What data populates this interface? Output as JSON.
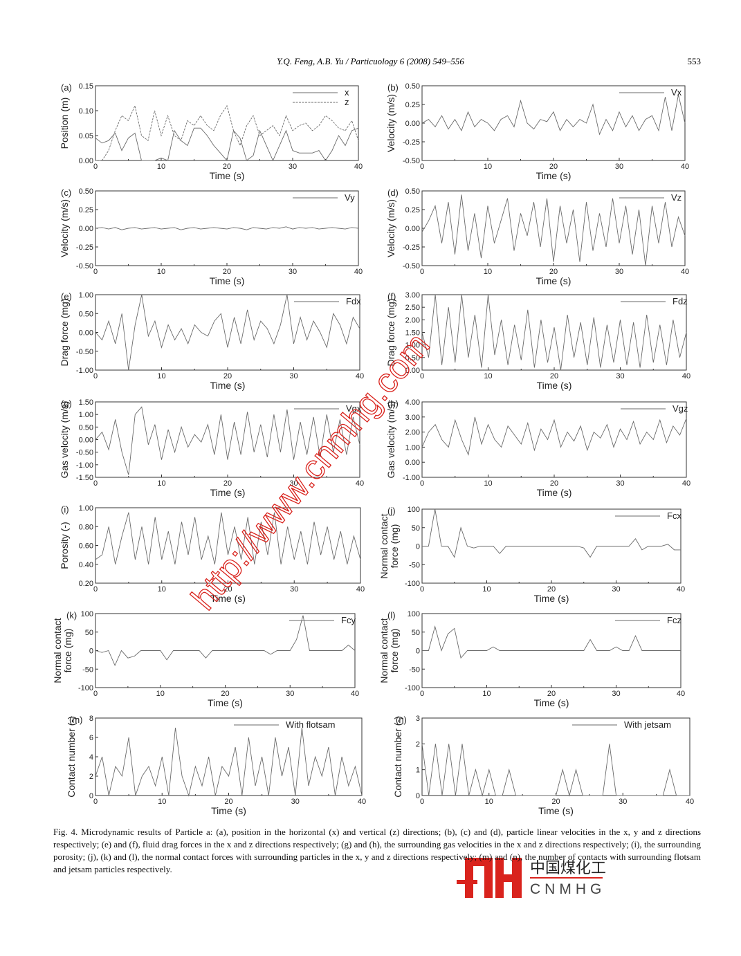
{
  "header": {
    "running_head": "Y.Q. Feng, A.B. Yu / Particuology 6 (2008) 549–556",
    "page_number": "553"
  },
  "caption": "Fig. 4. Microdynamic results of Particle a: (a), position in the horizontal (x) and vertical (z) directions; (b), (c) and (d), particle linear velocities in the x, y and z directions respectively; (e) and (f), fluid drag forces in the x and z directions respectively; (g) and (h), the surrounding gas velocities in the x and z directions respectively; (i), the surrounding porosity; (j), (k) and (l), the normal contact forces with surrounding particles in the x, y and z directions respectively; (m) and (n), the number of contacts with surrounding flotsam and jetsam particles respectively.",
  "watermark": {
    "url_text": "http://www.cnmhg.com",
    "logo_cn": "中国煤化工",
    "logo_en": "CNMHG",
    "color": "#d9231d"
  },
  "colors": {
    "line": "#6a6a6a",
    "axis": "#333333"
  },
  "chart_data": [
    {
      "id": "a",
      "panel": "(a)",
      "type": "line",
      "xlabel": "Time (s)",
      "ylabel": [
        "Position (m)"
      ],
      "xlim": [
        0,
        40
      ],
      "ylim": [
        0,
        0.15
      ],
      "xticks": [
        "0",
        "10",
        "20",
        "30",
        "40"
      ],
      "yticks": [
        "0.00",
        "0.05",
        "0.10",
        "0.15"
      ],
      "x_step": 1,
      "series": [
        {
          "name": "x",
          "style": "solid",
          "values": [
            0.045,
            0.035,
            0.04,
            0.055,
            0.02,
            0.045,
            0.055,
            0.0,
            0.0,
            0.0,
            0.005,
            0.0,
            0.06,
            0.04,
            0.03,
            0.065,
            0.065,
            0.05,
            0.03,
            0.015,
            0.0,
            0.06,
            0.045,
            0.0,
            0.01,
            0.06,
            0.03,
            0.0,
            0.03,
            0.06,
            0.02,
            0.015,
            0.015,
            0.015,
            0.02,
            0.0,
            0.02,
            0.05,
            0.03,
            0.06,
            0.065
          ]
        },
        {
          "name": "z",
          "style": "dashed",
          "values": [
            0.0,
            0.0,
            0.02,
            0.06,
            0.09,
            0.08,
            0.11,
            0.05,
            0.04,
            0.1,
            0.05,
            0.09,
            0.05,
            0.04,
            0.08,
            0.07,
            0.09,
            0.07,
            0.06,
            0.09,
            0.11,
            0.06,
            0.03,
            0.07,
            0.09,
            0.05,
            0.06,
            0.07,
            0.05,
            0.09,
            0.06,
            0.07,
            0.075,
            0.06,
            0.07,
            0.09,
            0.08,
            0.065,
            0.06,
            0.08,
            0.04
          ]
        }
      ]
    },
    {
      "id": "b",
      "panel": "(b)",
      "type": "line",
      "xlabel": "Time (s)",
      "ylabel": [
        "Velocity (m/s)"
      ],
      "xlim": [
        0,
        40
      ],
      "ylim": [
        -0.5,
        0.5
      ],
      "xticks": [
        "0",
        "10",
        "20",
        "30",
        "40"
      ],
      "yticks": [
        "-0.50",
        "-0.25",
        "0.00",
        "0.25",
        "0.50"
      ],
      "x_step": 1,
      "series": [
        {
          "name": "Vx",
          "style": "solid",
          "values": [
            0,
            0.05,
            -0.05,
            0.1,
            -0.08,
            0.05,
            -0.1,
            0.15,
            -0.05,
            0.05,
            0,
            -0.1,
            0.05,
            0.1,
            -0.05,
            0.3,
            0,
            -0.08,
            0.05,
            0.02,
            0.15,
            -0.1,
            0.05,
            -0.05,
            0.05,
            0,
            0.25,
            -0.15,
            0.05,
            -0.1,
            0.15,
            -0.05,
            0.1,
            -0.1,
            0.05,
            0.1,
            -0.1,
            0.35,
            -0.1,
            0.38,
            0
          ]
        }
      ]
    },
    {
      "id": "c",
      "panel": "(c)",
      "type": "line",
      "xlabel": "Time (s)",
      "ylabel": [
        "Velocity (m/s)"
      ],
      "xlim": [
        0,
        40
      ],
      "ylim": [
        -0.5,
        0.5
      ],
      "xticks": [
        "0",
        "10",
        "20",
        "30",
        "40"
      ],
      "yticks": [
        "-0.50",
        "-0.25",
        "0.00",
        "0.25",
        "0.50"
      ],
      "x_step": 1,
      "series": [
        {
          "name": "Vy",
          "style": "solid",
          "values": [
            0,
            0.01,
            -0.01,
            0.01,
            -0.02,
            0,
            0.01,
            -0.01,
            0,
            0.01,
            -0.01,
            0,
            0.01,
            -0.02,
            0,
            0.01,
            -0.01,
            0,
            0.01,
            0,
            -0.01,
            0.01,
            0,
            -0.02,
            0.01,
            0,
            -0.01,
            0.01,
            0,
            0.02,
            -0.01,
            0.01,
            0,
            0.01,
            -0.01,
            0,
            0.01,
            0,
            -0.01,
            0.01,
            0
          ]
        }
      ]
    },
    {
      "id": "d",
      "panel": "(d)",
      "type": "line",
      "xlabel": "Time (s)",
      "ylabel": [
        "Velocity (m/s)"
      ],
      "xlim": [
        0,
        40
      ],
      "ylim": [
        -0.5,
        0.5
      ],
      "xticks": [
        "0",
        "10",
        "20",
        "30",
        "40"
      ],
      "yticks": [
        "-0.50",
        "-0.25",
        "0.00",
        "0.25",
        "0.50"
      ],
      "x_step": 1,
      "series": [
        {
          "name": "Vz",
          "style": "solid",
          "values": [
            -0.05,
            0.1,
            0.3,
            -0.2,
            0.35,
            -0.35,
            0.45,
            -0.3,
            0.2,
            -0.4,
            0.3,
            -0.2,
            0.1,
            0.4,
            -0.3,
            0.2,
            -0.1,
            0.35,
            -0.25,
            0.4,
            -0.45,
            0.3,
            -0.2,
            0.25,
            -0.45,
            0.35,
            -0.3,
            0.2,
            -0.25,
            0.4,
            -0.2,
            0.3,
            -0.35,
            0.25,
            -0.5,
            0.3,
            -0.2,
            0.35,
            -0.25,
            0.15,
            -0.1
          ]
        }
      ]
    },
    {
      "id": "e",
      "panel": "(e)",
      "type": "line",
      "xlabel": "Time (s)",
      "ylabel": [
        "Drag force (mg)"
      ],
      "xlim": [
        0,
        40
      ],
      "ylim": [
        -1,
        1
      ],
      "xticks": [
        "0",
        "10",
        "20",
        "30",
        "40"
      ],
      "yticks": [
        "-1.00",
        "-0.50",
        "0.00",
        "0.50",
        "1.00"
      ],
      "x_step": 1,
      "series": [
        {
          "name": "Fdx",
          "style": "solid",
          "values": [
            0,
            -0.2,
            0.3,
            -0.3,
            0.5,
            -1.0,
            0.2,
            1.0,
            -0.1,
            0.3,
            -0.4,
            0.2,
            -0.2,
            0.1,
            -0.3,
            0.2,
            0.0,
            -0.1,
            0.3,
            0.5,
            -0.4,
            0.4,
            -0.3,
            0.6,
            -0.2,
            0.3,
            0.1,
            -0.3,
            0.2,
            1.0,
            -0.3,
            0.4,
            -0.2,
            0.3,
            0.0,
            -0.4,
            0.5,
            0.2,
            -0.3,
            0.4,
            0.1
          ]
        }
      ]
    },
    {
      "id": "f",
      "panel": "(f)",
      "type": "line",
      "xlabel": "Time (s)",
      "ylabel": [
        "Drag force (mg)"
      ],
      "xlim": [
        0,
        40
      ],
      "ylim": [
        0,
        3
      ],
      "xticks": [
        "0",
        "10",
        "20",
        "30",
        "40"
      ],
      "yticks": [
        "0.00",
        "0.50",
        "1.00",
        "1.50",
        "2.00",
        "2.50",
        "3.00"
      ],
      "x_step": 1,
      "series": [
        {
          "name": "Fdz",
          "style": "solid",
          "values": [
            1.5,
            0.5,
            3.0,
            0.2,
            2.5,
            0.3,
            3.0,
            0.5,
            2.2,
            0.1,
            3.0,
            0.6,
            2.0,
            0.2,
            1.8,
            0.4,
            2.4,
            0.1,
            2.0,
            0.3,
            1.7,
            0.0,
            2.2,
            0.5,
            1.9,
            0.2,
            2.1,
            0.1,
            1.8,
            0.3,
            2.0,
            0.2,
            1.9,
            0.1,
            2.2,
            0.3,
            1.8,
            0.2,
            2.0,
            0.5,
            1.5
          ]
        }
      ]
    },
    {
      "id": "g",
      "panel": "(g)",
      "type": "line",
      "xlabel": "Time (s)",
      "ylabel": [
        "Gas velocity (m/s)"
      ],
      "xlim": [
        0,
        40
      ],
      "ylim": [
        -1.5,
        1.5
      ],
      "xticks": [
        "0",
        "10",
        "20",
        "30",
        "40"
      ],
      "yticks": [
        "-1.50",
        "-1.00",
        "-0.50",
        "0.00",
        "0.50",
        "1.00",
        "1.50"
      ],
      "x_step": 1,
      "series": [
        {
          "name": "Vgx",
          "style": "solid",
          "values": [
            0,
            0.3,
            -0.4,
            0.8,
            -0.5,
            -1.4,
            1.0,
            1.3,
            -0.2,
            0.6,
            -0.8,
            0.4,
            -0.5,
            0.5,
            -0.3,
            0.2,
            -0.1,
            0.6,
            -0.6,
            1.0,
            -0.8,
            0.7,
            -0.6,
            1.1,
            -0.5,
            0.6,
            -0.7,
            1.0,
            -0.5,
            1.2,
            -0.8,
            0.7,
            -0.6,
            0.9,
            -0.7,
            1.0,
            -0.5,
            0.8,
            -0.6,
            0.9,
            -0.2
          ]
        }
      ]
    },
    {
      "id": "h",
      "panel": "(h)",
      "type": "line",
      "xlabel": "Time (s)",
      "ylabel": [
        "Gas velocity (m/s)"
      ],
      "xlim": [
        0,
        40
      ],
      "ylim": [
        -1,
        4
      ],
      "xticks": [
        "0",
        "10",
        "20",
        "30",
        "40"
      ],
      "yticks": [
        "-1.00",
        "0.00",
        "1.00",
        "2.00",
        "3.00",
        "4.00"
      ],
      "x_step": 1,
      "series": [
        {
          "name": "Vgz",
          "style": "solid",
          "values": [
            1.0,
            2.0,
            2.5,
            1.5,
            1.0,
            2.8,
            1.5,
            0.5,
            3.0,
            1.2,
            2.5,
            1.5,
            1.0,
            2.4,
            1.8,
            1.2,
            2.6,
            0.8,
            2.2,
            1.5,
            2.8,
            1.0,
            2.0,
            1.4,
            2.4,
            0.8,
            2.0,
            1.6,
            2.5,
            1.0,
            2.2,
            1.5,
            2.7,
            1.2,
            2.0,
            1.5,
            2.8,
            1.3,
            2.4,
            1.8,
            2.9
          ]
        }
      ]
    },
    {
      "id": "i",
      "panel": "(i)",
      "type": "line",
      "xlabel": "Time (s)",
      "ylabel": [
        "Porosity (-)"
      ],
      "xlim": [
        0,
        40
      ],
      "ylim": [
        0.2,
        1.0
      ],
      "xticks": [
        "0",
        "10",
        "20",
        "30",
        "40"
      ],
      "yticks": [
        "0.20",
        "0.40",
        "0.60",
        "0.80",
        "1.00"
      ],
      "x_step": 1,
      "series": [
        {
          "name": "",
          "style": "solid",
          "values": [
            0.45,
            0.5,
            0.8,
            0.4,
            0.7,
            0.95,
            0.45,
            0.8,
            0.4,
            0.9,
            0.45,
            0.75,
            0.4,
            0.85,
            0.5,
            0.9,
            0.45,
            0.7,
            0.4,
            0.95,
            0.5,
            0.8,
            0.45,
            0.9,
            0.4,
            0.85,
            0.5,
            0.95,
            0.4,
            0.8,
            0.45,
            0.75,
            0.4,
            0.85,
            0.5,
            0.8,
            0.45,
            0.75,
            0.4,
            0.7,
            0.45
          ]
        }
      ]
    },
    {
      "id": "j",
      "panel": "(j)",
      "type": "line",
      "xlabel": "Time (s)",
      "ylabel": [
        "Normal contact",
        "force (mg)"
      ],
      "xlim": [
        0,
        40
      ],
      "ylim": [
        -100,
        100
      ],
      "xticks": [
        "0",
        "10",
        "20",
        "30",
        "40"
      ],
      "yticks": [
        "-100",
        "-50",
        "0",
        "50",
        "100"
      ],
      "x_step": 1,
      "series": [
        {
          "name": "Fcx",
          "style": "solid",
          "values": [
            0,
            0,
            100,
            0,
            0,
            -30,
            50,
            0,
            -5,
            0,
            0,
            0,
            -20,
            0,
            0,
            0,
            0,
            0,
            0,
            0,
            0,
            0,
            0,
            0,
            0,
            -5,
            -30,
            0,
            0,
            0,
            0,
            0,
            0,
            20,
            -10,
            0,
            0,
            0,
            5,
            -10,
            -10
          ]
        }
      ]
    },
    {
      "id": "k",
      "panel": "(k)",
      "type": "line",
      "xlabel": "Time (s)",
      "ylabel": [
        "Normal contact",
        "force (mg)"
      ],
      "xlim": [
        0,
        40
      ],
      "ylim": [
        -100,
        100
      ],
      "xticks": [
        "0",
        "10",
        "20",
        "30",
        "40"
      ],
      "yticks": [
        "-100",
        "-50",
        "0",
        "50",
        "100"
      ],
      "x_step": 1,
      "series": [
        {
          "name": "Fcy",
          "style": "solid",
          "values": [
            0,
            -5,
            0,
            -40,
            0,
            -20,
            -15,
            0,
            0,
            0,
            0,
            -25,
            0,
            0,
            0,
            0,
            0,
            -20,
            0,
            0,
            0,
            0,
            0,
            0,
            0,
            0,
            0,
            -10,
            0,
            0,
            0,
            30,
            95,
            0,
            0,
            0,
            0,
            0,
            0,
            15,
            0
          ]
        }
      ]
    },
    {
      "id": "l",
      "panel": "(l)",
      "type": "line",
      "xlabel": "Time (s)",
      "ylabel": [
        "Normal contact",
        "force (mg)"
      ],
      "xlim": [
        0,
        40
      ],
      "ylim": [
        -100,
        100
      ],
      "xticks": [
        "0",
        "10",
        "20",
        "30",
        "40"
      ],
      "yticks": [
        "-100",
        "-50",
        "0",
        "50",
        "100"
      ],
      "x_step": 1,
      "series": [
        {
          "name": "Fcz",
          "style": "solid",
          "values": [
            0,
            0,
            65,
            0,
            45,
            60,
            -20,
            0,
            0,
            0,
            0,
            10,
            0,
            0,
            0,
            0,
            0,
            0,
            0,
            0,
            0,
            0,
            0,
            0,
            0,
            0,
            30,
            0,
            0,
            0,
            10,
            0,
            0,
            40,
            0,
            0,
            0,
            0,
            0,
            0,
            0
          ]
        }
      ]
    },
    {
      "id": "m",
      "panel": "(m)",
      "type": "line",
      "xlabel": "Time (s)",
      "ylabel": [
        "Contact number (-)"
      ],
      "xlim": [
        0,
        40
      ],
      "ylim": [
        0,
        8
      ],
      "xticks": [
        "0",
        "10",
        "20",
        "30",
        "40"
      ],
      "yticks": [
        "0",
        "2",
        "4",
        "6",
        "8"
      ],
      "x_step": 1,
      "series": [
        {
          "name": "With flotsam",
          "style": "solid",
          "values": [
            2,
            4,
            0,
            3,
            2,
            6,
            0,
            2,
            3,
            1,
            4,
            0,
            7,
            2,
            0,
            3,
            1,
            4,
            0,
            3,
            2,
            5,
            0,
            6,
            1,
            4,
            0,
            6,
            2,
            5,
            0,
            7,
            1,
            4,
            2,
            5,
            0,
            4,
            1,
            3,
            0
          ]
        }
      ]
    },
    {
      "id": "n",
      "panel": "(n)",
      "type": "line",
      "xlabel": "Time (s)",
      "ylabel": [
        "Contact number (-)"
      ],
      "xlim": [
        0,
        40
      ],
      "ylim": [
        0,
        3
      ],
      "xticks": [
        "0",
        "10",
        "20",
        "30",
        "40"
      ],
      "yticks": [
        "0",
        "1",
        "2",
        "3"
      ],
      "x_step": 1,
      "series": [
        {
          "name": "With jetsam",
          "style": "solid",
          "values": [
            2,
            0,
            2,
            0,
            2,
            0,
            2,
            0,
            1,
            0,
            1,
            0,
            0,
            1,
            0,
            0,
            0,
            0,
            0,
            0,
            0,
            1,
            0,
            1,
            0,
            0,
            0,
            0,
            2,
            0,
            0,
            0,
            0,
            0,
            0,
            0,
            0,
            1,
            0,
            0,
            0
          ]
        }
      ]
    }
  ]
}
